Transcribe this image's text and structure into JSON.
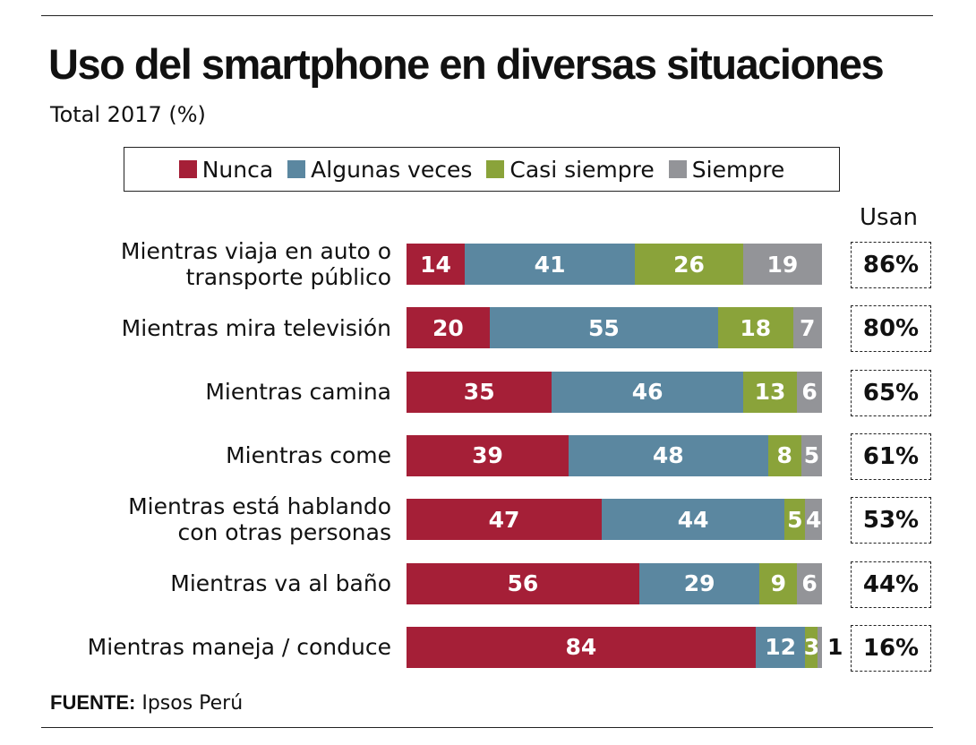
{
  "chart_data": {
    "type": "bar",
    "orientation": "horizontal",
    "stacked": true,
    "title": "Uso del smartphone en diversas situaciones",
    "subtitle": "Total 2017 (%)",
    "legend_position": "top",
    "categories": [
      "Mientras viaja en auto o transporte público",
      "Mientras mira televisión",
      "Mientras camina",
      "Mientras come",
      "Mientras está hablando con otras personas",
      "Mientras va al baño",
      "Mientras maneja / conduce"
    ],
    "category_lines": [
      [
        "Mientras viaja en auto o",
        "transporte público"
      ],
      [
        "Mientras mira televisión"
      ],
      [
        "Mientras camina"
      ],
      [
        "Mientras come"
      ],
      [
        "Mientras está hablando",
        "con otras personas"
      ],
      [
        "Mientras va al baño"
      ],
      [
        "Mientras maneja / conduce"
      ]
    ],
    "series": [
      {
        "name": "Nunca",
        "color": "#a51f37",
        "values": [
          14,
          20,
          35,
          39,
          47,
          56,
          84
        ]
      },
      {
        "name": "Algunas veces",
        "color": "#5b87a0",
        "values": [
          41,
          55,
          46,
          48,
          44,
          29,
          12
        ]
      },
      {
        "name": "Casi siempre",
        "color": "#8aa33a",
        "values": [
          26,
          18,
          13,
          8,
          5,
          9,
          3
        ]
      },
      {
        "name": "Siempre",
        "color": "#939498",
        "values": [
          19,
          7,
          6,
          5,
          4,
          6,
          1
        ]
      }
    ],
    "xlim": [
      0,
      100
    ],
    "grid": false,
    "usan_header": "Usan",
    "usan": [
      "86%",
      "80%",
      "65%",
      "61%",
      "53%",
      "44%",
      "16%"
    ],
    "source_label": "FUENTE:",
    "source": "Ipsos Perú"
  }
}
